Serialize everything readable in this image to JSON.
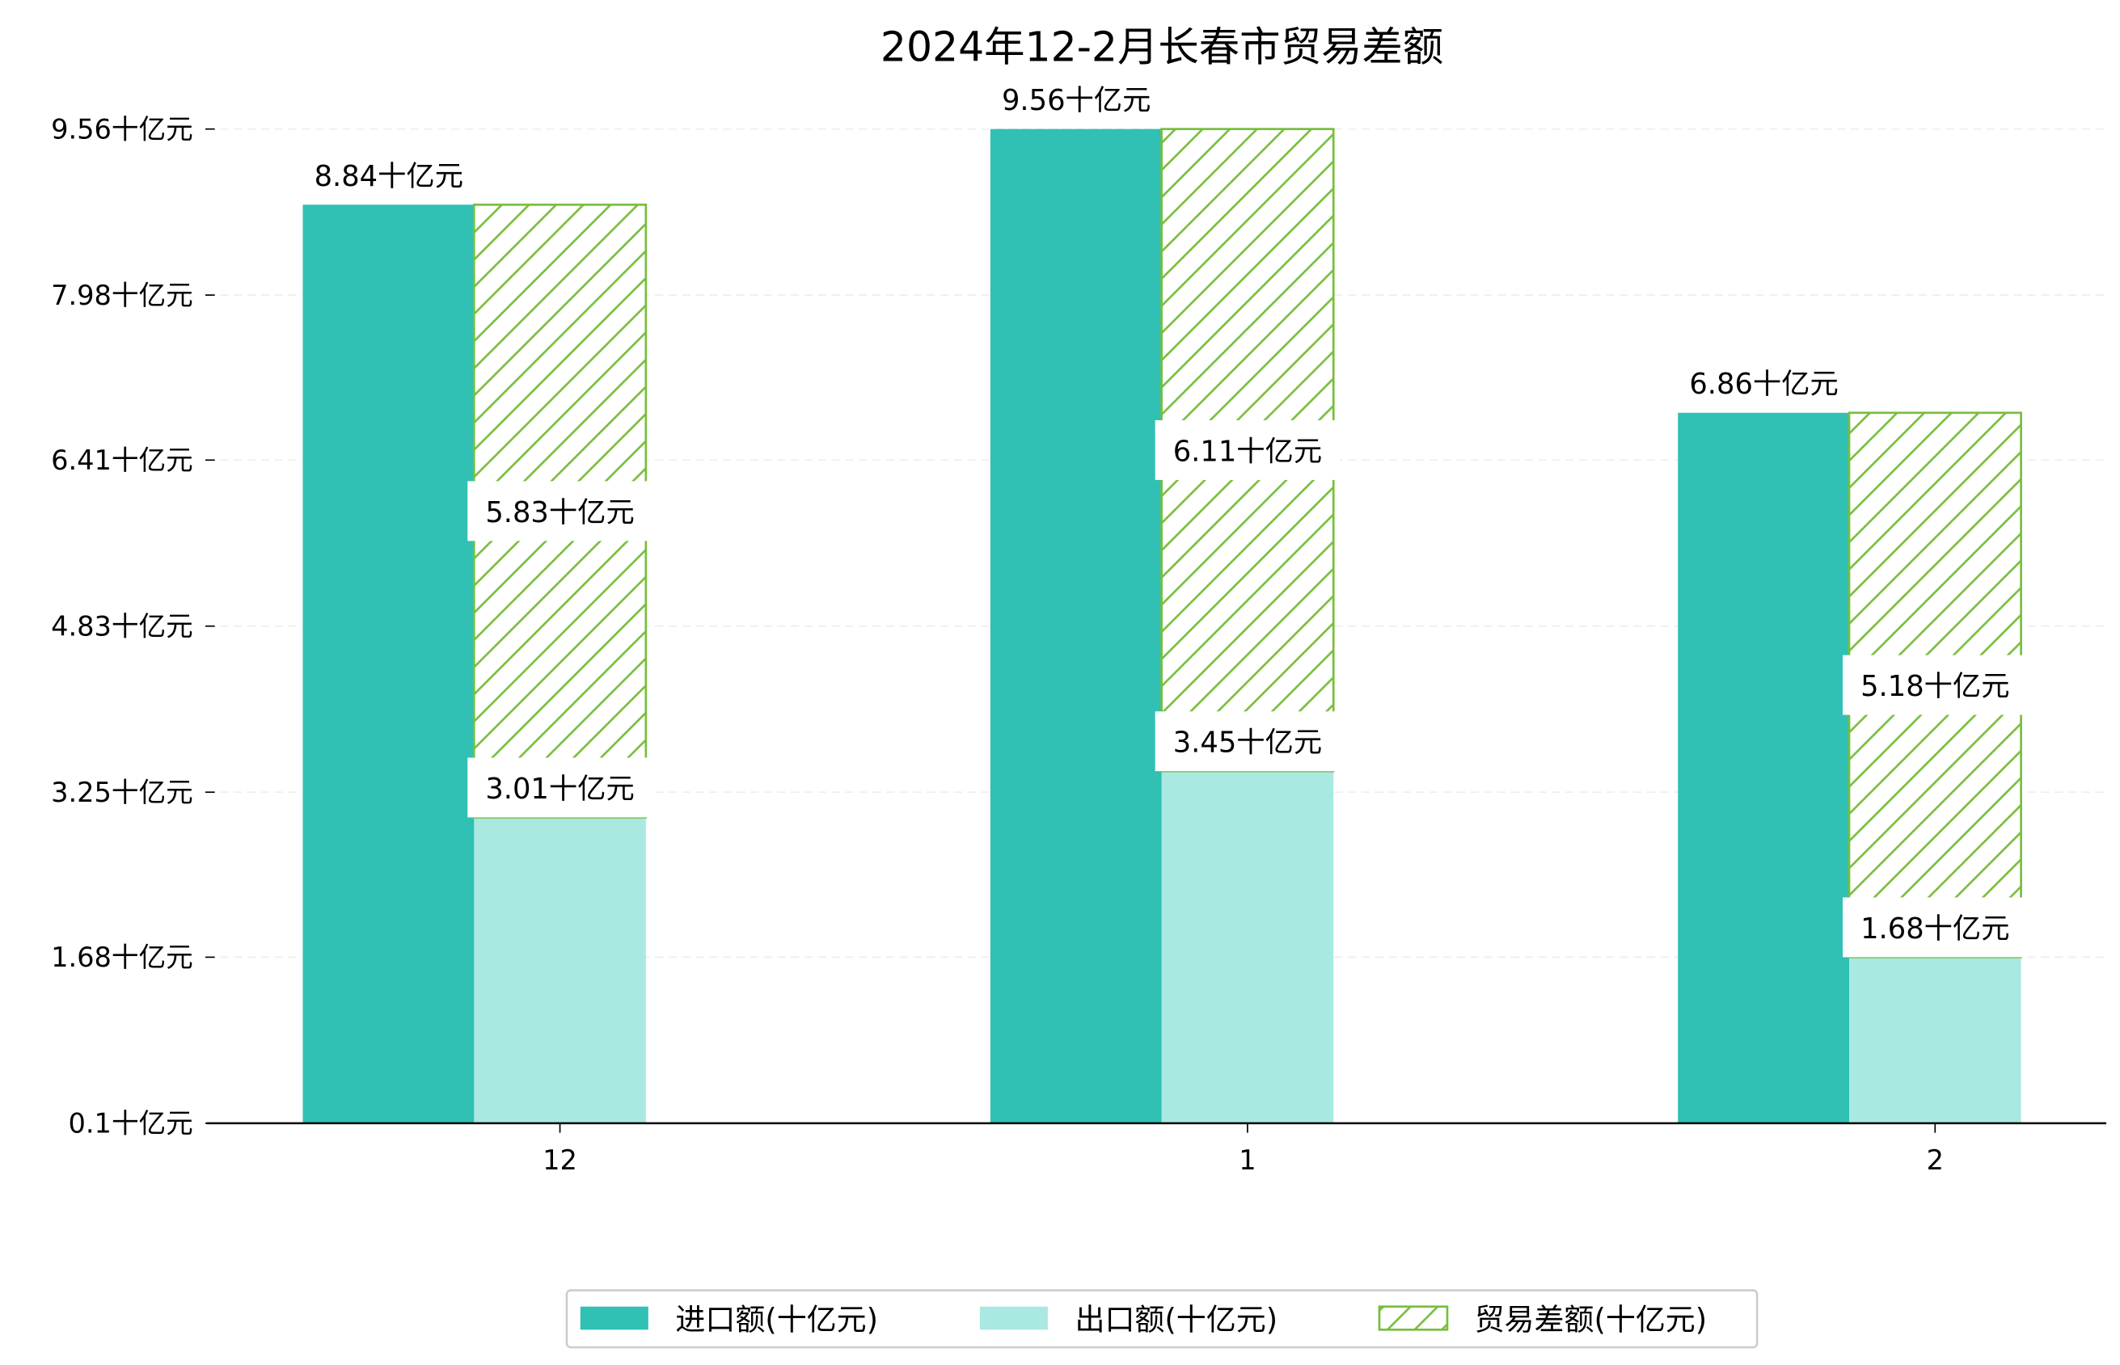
{
  "chart_data": {
    "type": "bar",
    "title": "2024年12-2月长春市贸易差额",
    "xlabel": "",
    "ylabel": "",
    "categories": [
      "12",
      "1",
      "2"
    ],
    "yticks": [
      "0.1十亿元",
      "1.68十亿元",
      "3.25十亿元",
      "4.83十亿元",
      "6.41十亿元",
      "7.98十亿元",
      "9.56十亿元"
    ],
    "ytick_values": [
      0.1,
      1.68,
      3.25,
      4.83,
      6.41,
      7.98,
      9.56
    ],
    "ylim": [
      0.1,
      9.56
    ],
    "grid": "horizontal dashed",
    "legend_position": "bottom-center",
    "unit_suffix": "十亿元",
    "series": [
      {
        "name": "进口额(十亿元)",
        "values": [
          8.84,
          9.56,
          6.86
        ],
        "labels": [
          "8.84十亿元",
          "9.56十亿元",
          "6.86十亿元"
        ],
        "color": "#30c0b4"
      },
      {
        "name": "出口额(十亿元)",
        "values": [
          3.01,
          3.45,
          1.68
        ],
        "labels": [
          "3.01十亿元",
          "3.45十亿元",
          "1.68十亿元"
        ],
        "color": "#aae8e2"
      },
      {
        "name": "贸易差额(十亿元)",
        "values": [
          5.83,
          6.11,
          5.18
        ],
        "labels": [
          "5.83十亿元",
          "6.11十亿元",
          "5.18十亿元"
        ],
        "color": "#78be3c",
        "hatch": "/",
        "stacked_on": "出口额(十亿元)"
      }
    ]
  }
}
